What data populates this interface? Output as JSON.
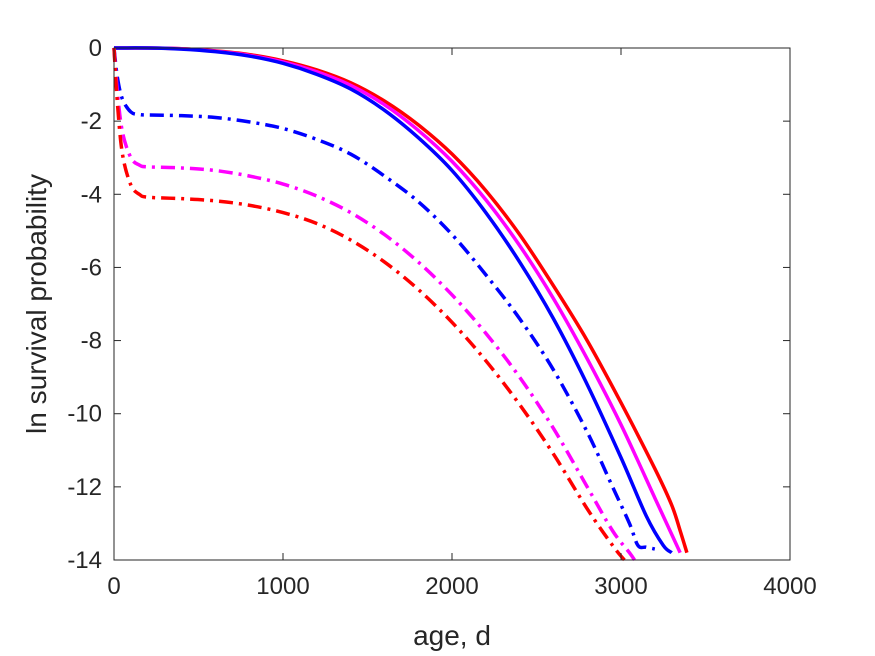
{
  "chart_data": {
    "type": "line",
    "xlabel": "age, d",
    "ylabel": "ln survival probability",
    "xlim": [
      0,
      4000
    ],
    "ylim": [
      -14,
      0
    ],
    "xticks": [
      0,
      1000,
      2000,
      3000,
      4000
    ],
    "yticks": [
      0,
      -2,
      -4,
      -6,
      -8,
      -10,
      -12,
      -14
    ],
    "xtick_labels": [
      "0",
      "1000",
      "2000",
      "3000",
      "4000"
    ],
    "ytick_labels": [
      "0",
      "-2",
      "-4",
      "-6",
      "-8",
      "-10",
      "-12",
      "-14"
    ],
    "grid": false,
    "legend": "none",
    "series": [
      {
        "color": "#ff0000",
        "style": "solid",
        "x": [
          0,
          200,
          400,
          600,
          800,
          1000,
          1200,
          1400,
          1600,
          1800,
          2000,
          2200,
          2400,
          2600,
          2800,
          3000,
          3200,
          3300,
          3350,
          3390
        ],
        "y": [
          0,
          0,
          -0.02,
          -0.08,
          -0.18,
          -0.35,
          -0.6,
          -0.95,
          -1.45,
          -2.1,
          -2.9,
          -3.9,
          -5.1,
          -6.5,
          -8.0,
          -9.7,
          -11.5,
          -12.5,
          -13.2,
          -13.8
        ]
      },
      {
        "color": "#ff00ff",
        "style": "solid",
        "x": [
          0,
          200,
          400,
          600,
          800,
          1000,
          1200,
          1400,
          1600,
          1800,
          2000,
          2200,
          2400,
          2600,
          2800,
          3000,
          3200,
          3300,
          3350
        ],
        "y": [
          0,
          0,
          -0.02,
          -0.09,
          -0.2,
          -0.38,
          -0.65,
          -1.02,
          -1.55,
          -2.25,
          -3.1,
          -4.15,
          -5.4,
          -6.85,
          -8.5,
          -10.3,
          -12.3,
          -13.3,
          -13.8
        ]
      },
      {
        "color": "#0000ff",
        "style": "solid",
        "x": [
          0,
          200,
          400,
          600,
          800,
          1000,
          1200,
          1400,
          1600,
          1800,
          2000,
          2200,
          2400,
          2600,
          2800,
          3000,
          3150,
          3250,
          3300
        ],
        "y": [
          0,
          0,
          -0.03,
          -0.1,
          -0.22,
          -0.42,
          -0.72,
          -1.12,
          -1.7,
          -2.45,
          -3.35,
          -4.5,
          -5.85,
          -7.4,
          -9.2,
          -11.2,
          -12.8,
          -13.6,
          -13.8
        ]
      },
      {
        "color": "#0000ff",
        "style": "dashdot",
        "x": [
          0,
          20,
          50,
          100,
          150,
          200,
          400,
          600,
          800,
          1000,
          1200,
          1400,
          1600,
          1800,
          2000,
          2200,
          2400,
          2600,
          2800,
          2950,
          3050,
          3100,
          3150,
          3200
        ],
        "y": [
          0,
          -0.8,
          -1.4,
          -1.75,
          -1.82,
          -1.83,
          -1.85,
          -1.9,
          -2.02,
          -2.2,
          -2.5,
          -2.9,
          -3.5,
          -4.2,
          -5.1,
          -6.2,
          -7.4,
          -8.8,
          -10.5,
          -12.0,
          -13.0,
          -13.6,
          -13.65,
          -13.7
        ]
      },
      {
        "color": "#ff00ff",
        "style": "dashdot",
        "x": [
          0,
          20,
          50,
          100,
          150,
          200,
          400,
          600,
          800,
          1000,
          1200,
          1400,
          1600,
          1800,
          2000,
          2200,
          2400,
          2600,
          2800,
          2950,
          3050,
          3080
        ],
        "y": [
          0,
          -1.2,
          -2.3,
          -3.0,
          -3.2,
          -3.25,
          -3.28,
          -3.35,
          -3.5,
          -3.72,
          -4.05,
          -4.5,
          -5.1,
          -5.85,
          -6.75,
          -7.8,
          -9.0,
          -10.4,
          -12.0,
          -13.2,
          -13.8,
          -14.0
        ]
      },
      {
        "color": "#ff0000",
        "style": "dashdot",
        "x": [
          0,
          20,
          50,
          100,
          150,
          200,
          400,
          600,
          800,
          1000,
          1200,
          1400,
          1600,
          1800,
          2000,
          2200,
          2400,
          2600,
          2800,
          2950,
          3020
        ],
        "y": [
          0,
          -1.5,
          -2.9,
          -3.75,
          -4.0,
          -4.08,
          -4.12,
          -4.18,
          -4.3,
          -4.5,
          -4.8,
          -5.25,
          -5.85,
          -6.6,
          -7.5,
          -8.55,
          -9.75,
          -11.1,
          -12.6,
          -13.6,
          -14.0
        ]
      }
    ]
  }
}
